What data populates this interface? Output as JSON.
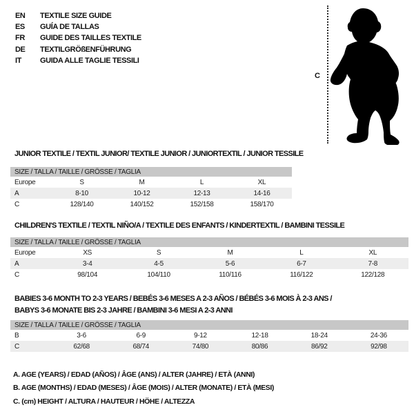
{
  "languages": [
    {
      "code": "EN",
      "label": "TEXTILE SIZE GUIDE"
    },
    {
      "code": "ES",
      "label": "GUÍA DE TALLAS"
    },
    {
      "code": "FR",
      "label": "GUIDE DES TAILLES TEXTILE"
    },
    {
      "code": "DE",
      "label": "TEXTILGRÖßENFÜHRUNG"
    },
    {
      "code": "IT",
      "label": "GUIDA ALLE TAGLIE TESSILI"
    }
  ],
  "figure": {
    "icon": "baby-silhouette",
    "height_label": "C"
  },
  "colors": {
    "band_gray": "#c7c7c7",
    "row_shade_gray": "#ededed",
    "silhouette": "#000000",
    "text": "#111111"
  },
  "tables": [
    {
      "title_lines": [
        "JUNIOR TEXTILE / TEXTIL JUNIOR/ TEXTILE JUNIOR / JUNIORTEXTIL / JUNIOR TESSILE"
      ],
      "size_band": "SIZE / TALLA / TAILLE / GRÖSSE / TAGLIA",
      "rows": [
        [
          "Europe",
          "S",
          "M",
          "L",
          "XL"
        ],
        [
          "A",
          "8-10",
          "10-12",
          "12-13",
          "14-16"
        ],
        [
          "C",
          "128/140",
          "140/152",
          "152/158",
          "158/170"
        ]
      ]
    },
    {
      "title_lines": [
        "CHILDREN'S TEXTILE / TEXTIL NIÑO/A / TEXTILE DES ENFANTS / KINDERTEXTIL / BAMBINI TESSILE"
      ],
      "size_band": "SIZE / TALLA / TAILLE / GRÖSSE / TAGLIA",
      "rows": [
        [
          "Europe",
          "XS",
          "S",
          "M",
          "L",
          "XL"
        ],
        [
          "A",
          "3-4",
          "4-5",
          "5-6",
          "6-7",
          "7-8"
        ],
        [
          "C",
          "98/104",
          "104/110",
          "110/116",
          "116/122",
          "122/128"
        ]
      ]
    },
    {
      "title_lines": [
        "BABIES 3-6 MONTH TO 2-3 YEARS / BEBÉS 3-6 MESES A 2-3 AÑOS / BÉBÉS 3-6 MOIS À 2-3 ANS /",
        "BABYS 3-6 MONATE BIS 2-3 JAHRE / BAMBINI 3-6 MESI A 2-3 ANNI"
      ],
      "size_band": "SIZE / TALLA / TAILLE / GRÖSSE / TAGLIA",
      "rows": [
        [
          "B",
          "3-6",
          "6-9",
          "9-12",
          "12-18",
          "18-24",
          "24-36"
        ],
        [
          "C",
          "62/68",
          "68/74",
          "74/80",
          "80/86",
          "86/92",
          "92/98"
        ]
      ]
    }
  ],
  "footnotes": [
    "A. AGE (YEARS) / EDAD (AÑOS) / ÂGE (ANS) / ALTER (JAHRE) / ETÀ (ANNI)",
    "B. AGE (MONTHS) / EDAD (MESES) / ÂGE (MOIS) / ALTER (MONATE) / ETÀ (MESI)",
    "C. (cm) HEIGHT / ALTURA / HAUTEUR / HÖHE / ALTEZZA"
  ]
}
